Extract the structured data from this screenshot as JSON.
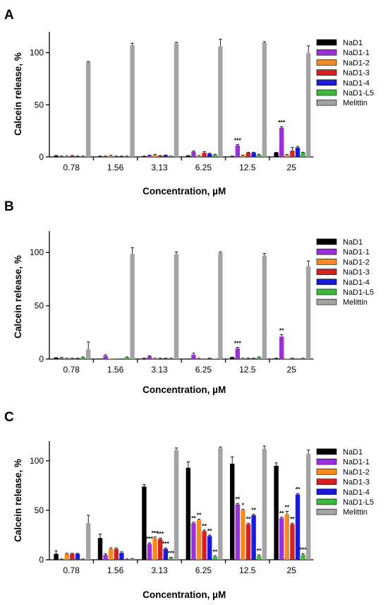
{
  "chart_data": [
    {
      "panel": "A",
      "type": "bar",
      "categories": [
        "0.78",
        "1.56",
        "3.13",
        "6.25",
        "12.5",
        "25"
      ],
      "xlabel": "Concentration, µM",
      "ylabel": "Calcein release, %",
      "ylim": [
        0,
        120
      ],
      "yticks": [
        0,
        50,
        100
      ],
      "legend": "right",
      "series": [
        {
          "name": "NaD1",
          "color": "#000000",
          "values": [
            1,
            0.5,
            0.5,
            1,
            0.5,
            4
          ],
          "errors": [
            0.3,
            0.3,
            0.3,
            0.3,
            0.3,
            0.4
          ]
        },
        {
          "name": "NaD1-1",
          "color": "#9b30d9",
          "values": [
            0.5,
            0.5,
            1.5,
            5,
            11,
            28
          ],
          "errors": [
            0.3,
            0.3,
            0.3,
            0.6,
            1,
            1
          ],
          "annotations": [
            "",
            "",
            "",
            "",
            "***",
            "***"
          ]
        },
        {
          "name": "NaD1-2",
          "color": "#f58a1f",
          "values": [
            0.5,
            1,
            2,
            1,
            1.5,
            2
          ],
          "errors": [
            0.3,
            0.5,
            0.5,
            0.3,
            0.3,
            0.3
          ]
        },
        {
          "name": "NaD1-3",
          "color": "#d71f1f",
          "values": [
            1,
            0.5,
            1,
            4,
            4,
            6
          ],
          "errors": [
            0.3,
            0.3,
            0.3,
            1,
            0.5,
            3
          ]
        },
        {
          "name": "NaD1-4",
          "color": "#1a1adf",
          "values": [
            0.5,
            0.5,
            1.5,
            3,
            4,
            9
          ],
          "errors": [
            0.3,
            0.3,
            0.3,
            0.5,
            0.5,
            1
          ]
        },
        {
          "name": "NaD1-L5",
          "color": "#3cb83c",
          "values": [
            0.5,
            0.5,
            0.5,
            2,
            2,
            4
          ],
          "errors": [
            0.3,
            0.3,
            0.3,
            0.5,
            0.5,
            0.5
          ]
        },
        {
          "name": "Melittin",
          "color": "#a3a3a3",
          "values": [
            91,
            107,
            109,
            106,
            109.5,
            99.5
          ],
          "errors": [
            0.5,
            2,
            1,
            7,
            1,
            7
          ]
        }
      ]
    },
    {
      "panel": "B",
      "type": "bar",
      "categories": [
        "0.78",
        "1.56",
        "3.13",
        "6.25",
        "12.5",
        "25"
      ],
      "xlabel": "Concentration, µM",
      "ylabel": "Calcein release, %",
      "ylim": [
        0,
        120
      ],
      "yticks": [
        0,
        50,
        100
      ],
      "legend": "right",
      "series": [
        {
          "name": "NaD1",
          "color": "#000000",
          "values": [
            1,
            0,
            0.5,
            0,
            1.5,
            0.5
          ],
          "errors": [
            0.3,
            0,
            0.3,
            0,
            0.3,
            0.3
          ]
        },
        {
          "name": "NaD1-1",
          "color": "#9b30d9",
          "values": [
            1,
            3,
            2.5,
            4,
            10,
            21
          ],
          "errors": [
            0.5,
            1,
            0.5,
            1.5,
            1,
            2
          ],
          "annotations": [
            "",
            "",
            "",
            "",
            "***",
            "**"
          ]
        },
        {
          "name": "NaD1-2",
          "color": "#f58a1f",
          "values": [
            0.5,
            0,
            0.5,
            0.5,
            0.5,
            0
          ],
          "errors": [
            0.3,
            0,
            0.3,
            0.3,
            0.3,
            0
          ]
        },
        {
          "name": "NaD1-3",
          "color": "#d71f1f",
          "values": [
            0.5,
            0,
            0.5,
            0,
            0.5,
            0.5
          ],
          "errors": [
            0.3,
            0,
            0.3,
            0,
            0.3,
            0.3
          ]
        },
        {
          "name": "NaD1-4",
          "color": "#1a1adf",
          "values": [
            0.5,
            0,
            0.5,
            0.5,
            0.5,
            0
          ],
          "errors": [
            0.3,
            0,
            0.3,
            0.3,
            0.3,
            0
          ]
        },
        {
          "name": "NaD1-L5",
          "color": "#3cb83c",
          "values": [
            1.5,
            1.5,
            0.5,
            0,
            1.5,
            0.5
          ],
          "errors": [
            0.5,
            0.5,
            0.3,
            0,
            0.5,
            0.3
          ]
        },
        {
          "name": "Melittin",
          "color": "#a3a3a3",
          "values": [
            9,
            98.5,
            98.5,
            99.5,
            97,
            87
          ],
          "errors": [
            7,
            6,
            2,
            1,
            2,
            5
          ]
        }
      ]
    },
    {
      "panel": "C",
      "type": "bar",
      "categories": [
        "0.78",
        "1.56",
        "3.13",
        "6.25",
        "12.5",
        "25"
      ],
      "xlabel": "Concentration, µM",
      "ylabel": "Calcein release, %",
      "ylim": [
        0,
        120
      ],
      "yticks": [
        0,
        50,
        100
      ],
      "legend": "right",
      "series": [
        {
          "name": "NaD1",
          "color": "#000000",
          "values": [
            6,
            22,
            74,
            93,
            97,
            95
          ],
          "errors": [
            3,
            4,
            2,
            6,
            7,
            3
          ]
        },
        {
          "name": "NaD1-1",
          "color": "#9b30d9",
          "values": [
            0.5,
            5,
            16,
            37,
            56,
            42
          ],
          "errors": [
            0.3,
            1,
            1,
            1,
            1,
            1
          ],
          "annotations": [
            "",
            "",
            "***",
            "**",
            "**",
            "**"
          ]
        },
        {
          "name": "NaD1-2",
          "color": "#f58a1f",
          "values": [
            6,
            11,
            22,
            40,
            50,
            46
          ],
          "errors": [
            0.5,
            1,
            1,
            1,
            1,
            3
          ],
          "annotations": [
            "",
            "",
            "***",
            "**",
            "*",
            "**"
          ]
        },
        {
          "name": "NaD1-3",
          "color": "#d71f1f",
          "values": [
            6,
            11,
            21,
            29,
            36,
            36
          ],
          "errors": [
            0.5,
            1,
            1,
            1,
            1,
            1
          ],
          "annotations": [
            "",
            "",
            "***",
            "**",
            "**",
            "**"
          ]
        },
        {
          "name": "NaD1-4",
          "color": "#1a1adf",
          "values": [
            6,
            7,
            11,
            24,
            45,
            66
          ],
          "errors": [
            0.5,
            1,
            1,
            1,
            1,
            1
          ],
          "annotations": [
            "",
            "",
            "***",
            "**",
            "**",
            "**"
          ]
        },
        {
          "name": "NaD1-L5",
          "color": "#3cb83c",
          "values": [
            0.5,
            0.5,
            2,
            3,
            4,
            5
          ],
          "errors": [
            0.3,
            0.3,
            0.5,
            1,
            1,
            1
          ],
          "annotations": [
            "",
            "",
            "***",
            "**",
            "**",
            "***"
          ]
        },
        {
          "name": "Melittin",
          "color": "#a3a3a3",
          "values": [
            37,
            1,
            111,
            113,
            112,
            107
          ],
          "errors": [
            8,
            0.3,
            2,
            1,
            3,
            4
          ]
        }
      ]
    }
  ]
}
